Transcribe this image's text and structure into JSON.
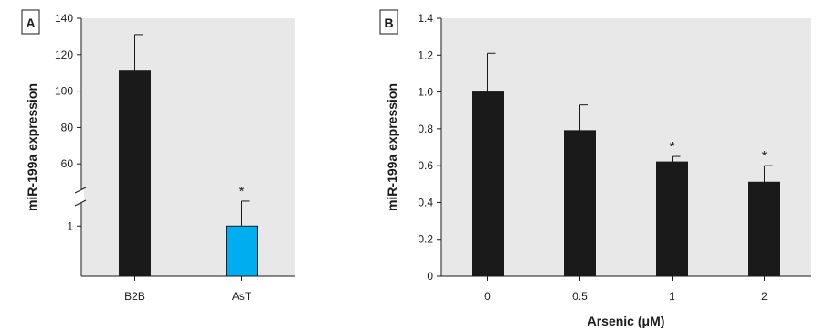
{
  "chart_data": [
    {
      "type": "bar",
      "panel": "A",
      "ylabel": "miR-199a expression",
      "xlabel": "",
      "categories": [
        "B2B",
        "AsT"
      ],
      "values": [
        111,
        1
      ],
      "errors": [
        20,
        0.5
      ],
      "bar_colors": [
        "#1a1a1a",
        "#00aeef"
      ],
      "significance": [
        "",
        "*"
      ],
      "axis_break": true,
      "lower_segment": {
        "ylim": [
          0,
          1.7
        ],
        "ticks": [
          "1"
        ]
      },
      "upper_segment": {
        "ylim": [
          40,
          140
        ],
        "ticks": [
          "60",
          "80",
          "100",
          "120",
          "140"
        ]
      },
      "grid": false,
      "background": "#e8e8e8"
    },
    {
      "type": "bar",
      "panel": "B",
      "ylabel": "miR-199a expression",
      "xlabel": "Arsenic (μM)",
      "categories": [
        "0",
        "0.5",
        "1",
        "2"
      ],
      "values": [
        1.0,
        0.79,
        0.62,
        0.51
      ],
      "errors": [
        0.21,
        0.14,
        0.03,
        0.09
      ],
      "bar_colors": [
        "#1a1a1a",
        "#1a1a1a",
        "#1a1a1a",
        "#1a1a1a"
      ],
      "significance": [
        "",
        "",
        "*",
        "*"
      ],
      "ylim": [
        0,
        1.4
      ],
      "yticks": [
        "0",
        "0.2",
        "0.4",
        "0.6",
        "0.8",
        "1.0",
        "1.2",
        "1.4"
      ],
      "grid": false,
      "background": "#e8e8e8"
    }
  ]
}
